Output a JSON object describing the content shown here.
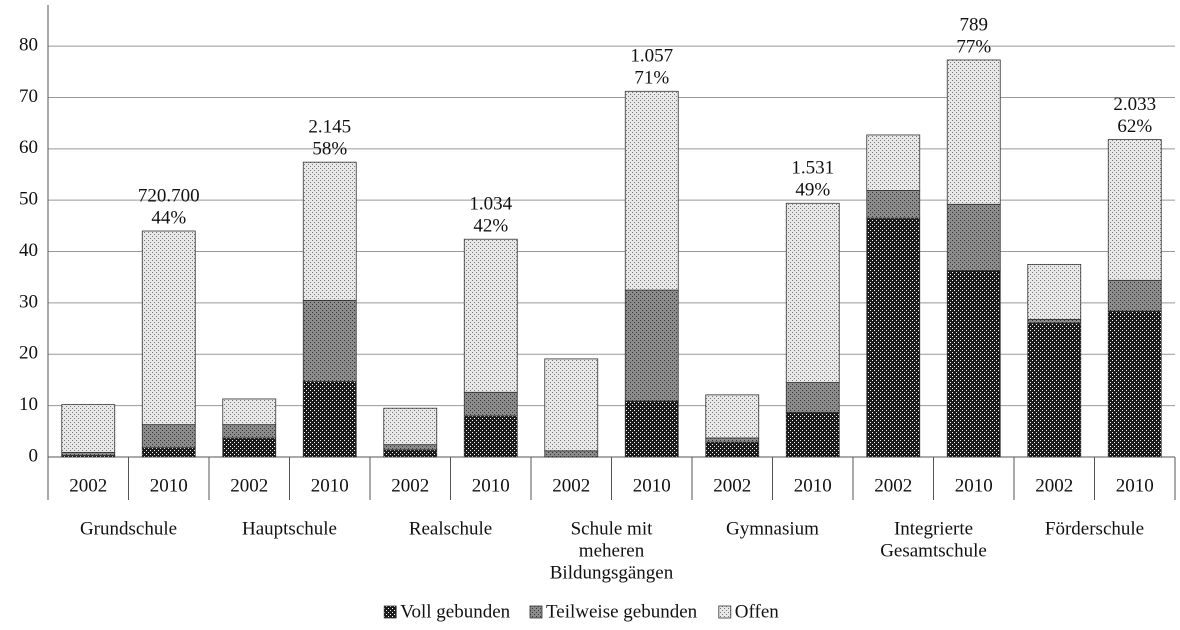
{
  "chart_data": {
    "type": "stacked-bar",
    "categories": [
      "2002",
      "2010",
      "2002",
      "2010",
      "2002",
      "2010",
      "2002",
      "2010",
      "2002",
      "2010",
      "2002",
      "2010",
      "2002",
      "2010"
    ],
    "groups": [
      [
        "Grundschule"
      ],
      [
        "Hauptschule"
      ],
      [
        "Realschule"
      ],
      [
        "Schule mit",
        "meheren",
        "Bildungsgängen"
      ],
      [
        "Gymnasium"
      ],
      [
        "Integrierte",
        "Gesamtschule"
      ],
      [
        "Förderschule"
      ]
    ],
    "series": [
      {
        "name": "Voll gebunden",
        "color": "#1a1a1a",
        "values": [
          0.3,
          1.8,
          3.7,
          14.7,
          1.4,
          8.0,
          0,
          10.9,
          2.9,
          8.7,
          46.5,
          36.3,
          26.1,
          28.4
        ]
      },
      {
        "name": "Teilweise gebunden",
        "color": "#8c8c8c",
        "values": [
          0.6,
          4.5,
          2.6,
          15.8,
          1.0,
          4.6,
          1.2,
          21.6,
          0.8,
          5.8,
          5.4,
          12.9,
          0.7,
          6.0
        ]
      },
      {
        "name": "Offen",
        "color": "#e8e8e8",
        "values": [
          9.3,
          37.7,
          5.0,
          26.9,
          7.1,
          29.8,
          17.9,
          38.7,
          8.4,
          34.9,
          10.8,
          28.1,
          10.7,
          27.4
        ]
      }
    ],
    "annotations": [
      null,
      [
        "720.700",
        "44%"
      ],
      null,
      [
        "2.145",
        "58%"
      ],
      null,
      [
        "1.034",
        "42%"
      ],
      null,
      [
        "1.057",
        "71%"
      ],
      null,
      [
        "1.531",
        "49%"
      ],
      null,
      [
        "789",
        "77%"
      ],
      null,
      [
        "2.033",
        "62%"
      ]
    ],
    "ylim": [
      0,
      88
    ],
    "yticks": [
      0,
      10,
      20,
      30,
      40,
      50,
      60,
      70,
      80
    ],
    "grid": true
  }
}
